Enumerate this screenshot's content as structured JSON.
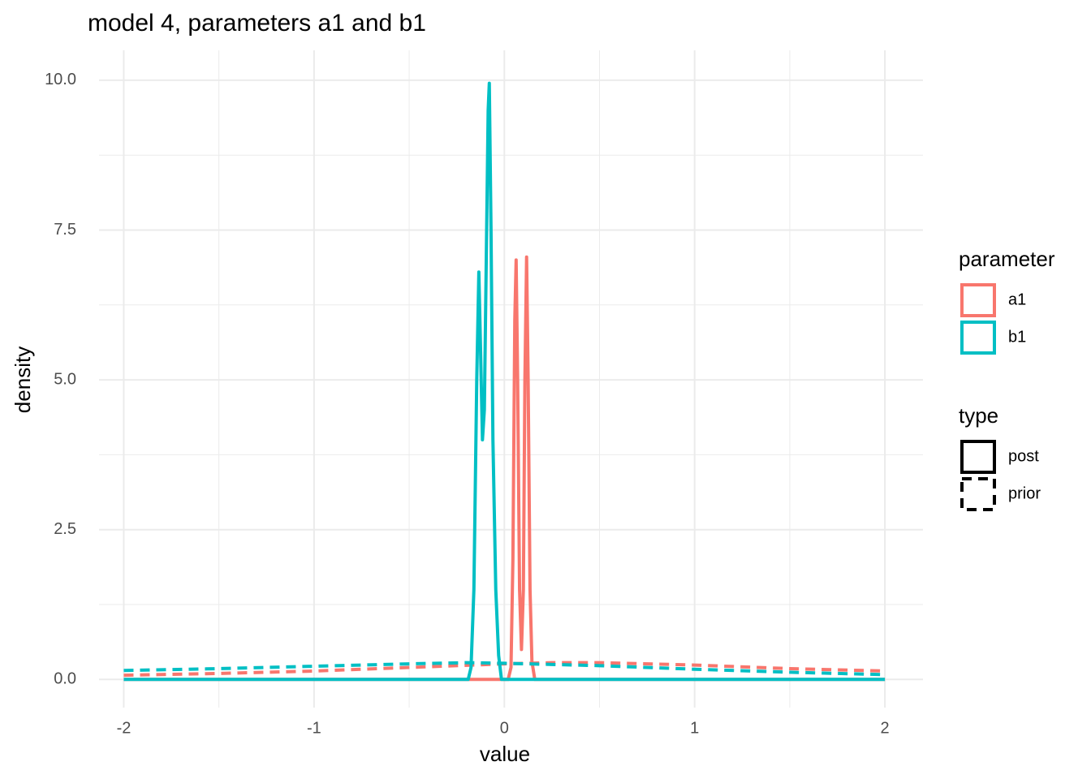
{
  "chart_data": {
    "type": "line",
    "title": "model 4, parameters a1 and b1",
    "x_label": "value",
    "y_label": "density",
    "xlim": [
      -2.13,
      2.2
    ],
    "ylim": [
      -0.47,
      10.5
    ],
    "xticks": [
      -2,
      -1,
      0,
      1,
      2
    ],
    "yticks": [
      {
        "value": 0,
        "label": "0.0"
      },
      2.5,
      {
        "value": 5,
        "label": "5.0"
      },
      7.5,
      {
        "value": 10,
        "label": "10.0"
      }
    ],
    "grid": true,
    "legend_position": "right",
    "series": [
      {
        "parameter": "a1",
        "type": "post",
        "color": "#F8766D",
        "dash": "solid",
        "x": [
          -2,
          0.02,
          0.035,
          0.045,
          0.055,
          0.062,
          0.07,
          0.08,
          0.09,
          0.1,
          0.108,
          0.117,
          0.125,
          0.135,
          0.145,
          0.16,
          2
        ],
        "values": [
          0,
          0,
          0.2,
          2.0,
          6.0,
          7.0,
          5.0,
          1.5,
          0.5,
          1.5,
          5.0,
          7.05,
          5.0,
          1.5,
          0.3,
          0,
          0
        ]
      },
      {
        "parameter": "a1",
        "type": "prior",
        "color": "#F8766D",
        "dash": "dashed",
        "x": [
          -2,
          -1.5,
          -1,
          -0.5,
          0,
          0.25,
          0.5,
          1,
          1.5,
          2
        ],
        "values": [
          0.07,
          0.1,
          0.14,
          0.2,
          0.26,
          0.28,
          0.28,
          0.24,
          0.18,
          0.14
        ]
      },
      {
        "parameter": "b1",
        "type": "post",
        "color": "#00BFC4",
        "dash": "solid",
        "x": [
          -2,
          -0.19,
          -0.175,
          -0.16,
          -0.145,
          -0.134,
          -0.125,
          -0.115,
          -0.105,
          -0.095,
          -0.085,
          -0.079,
          -0.07,
          -0.06,
          -0.045,
          -0.03,
          -0.015,
          2
        ],
        "values": [
          0,
          0,
          0.2,
          1.5,
          5.0,
          6.8,
          5.5,
          4.0,
          4.5,
          7.0,
          9.5,
          9.95,
          7.5,
          4.0,
          1.5,
          0.4,
          0,
          0
        ]
      },
      {
        "parameter": "b1",
        "type": "prior",
        "color": "#00BFC4",
        "dash": "dashed",
        "x": [
          -2,
          -1.5,
          -1,
          -0.5,
          -0.2,
          0,
          0.5,
          1,
          1.5,
          2
        ],
        "values": [
          0.15,
          0.18,
          0.22,
          0.26,
          0.28,
          0.27,
          0.23,
          0.17,
          0.12,
          0.08
        ]
      }
    ],
    "legends": [
      {
        "title": "parameter",
        "entries": [
          {
            "label": "a1",
            "color": "#F8766D"
          },
          {
            "label": "b1",
            "color": "#00BFC4"
          }
        ]
      },
      {
        "title": "type",
        "entries": [
          {
            "label": "post",
            "dash": "solid"
          },
          {
            "label": "prior",
            "dash": "dashed"
          }
        ]
      }
    ]
  }
}
